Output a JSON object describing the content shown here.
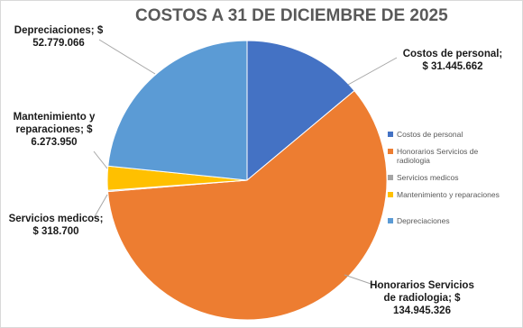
{
  "chart_data": {
    "type": "pie",
    "title": "COSTOS A 31 DE DICIEMBRE DE 2025",
    "categories": [
      "Costos de personal",
      "Honorarios Servicios de radiologia",
      "Servicios medicos",
      "Mantenimiento y reparaciones",
      "Depreciaciones"
    ],
    "values": [
      31445662,
      134945326,
      318700,
      6273950,
      52779066
    ],
    "colors": [
      "#4472c4",
      "#ed7d31",
      "#a5a5a5",
      "#ffc000",
      "#5b9bd5"
    ],
    "legend_position": "right",
    "data_labels": [
      {
        "name_text": "Costos de personal;",
        "value_text": "$ 31.445.662"
      },
      {
        "name_text": "Honorarios  Servicios",
        "name_text_2": "de radiologia;  $",
        "value_text": "134.945.326"
      },
      {
        "name_text": "Servicios medicos;",
        "value_text": "$ 318.700"
      },
      {
        "name_text": "Mantenimiento y",
        "name_text_2": "reparaciones;  $",
        "value_text": "6.273.950"
      },
      {
        "name_text": "Depreciaciones;  $",
        "value_text": "52.779.066"
      }
    ],
    "legend": [
      {
        "label": "Costos de personal"
      },
      {
        "label": "Honorarios Servicios de",
        "label_2": "radiologia"
      },
      {
        "label": "Servicios medicos"
      },
      {
        "label": "Mantenimiento y reparaciones"
      },
      {
        "label": "Depreciaciones"
      }
    ]
  }
}
